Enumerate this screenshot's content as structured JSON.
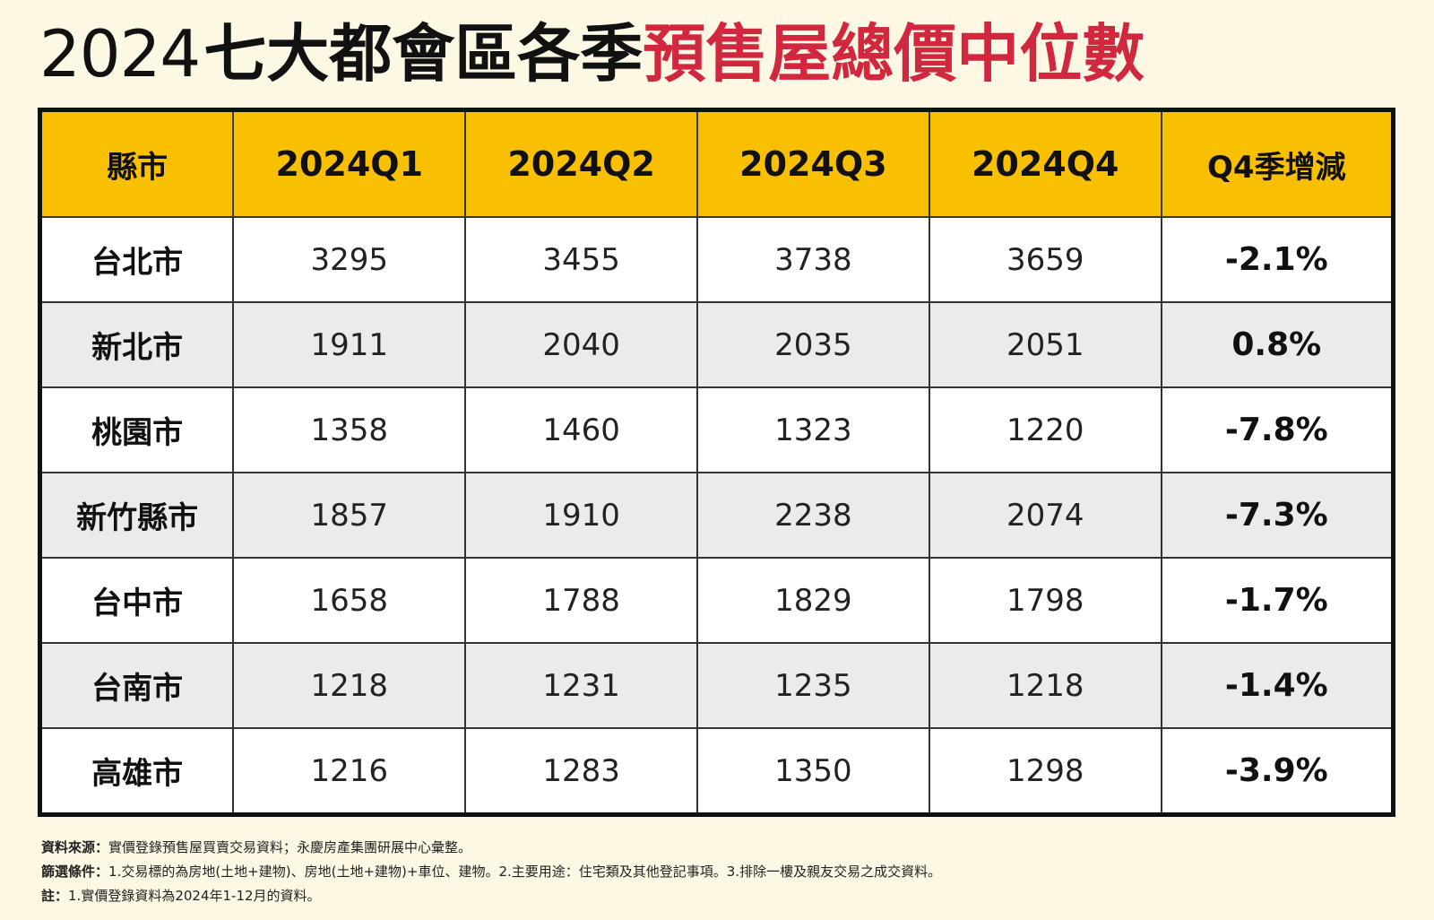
{
  "title": {
    "year": "2024",
    "black_part": "七大都會區各季",
    "red_part": "預售屋總價中位數"
  },
  "colors": {
    "header_bg": "#f8c000",
    "title_red": "#d1283f",
    "page_bg": "#fdf8e4",
    "row_alt_bg": "#ebebeb"
  },
  "table": {
    "headers": [
      "縣市",
      "2024Q1",
      "2024Q2",
      "2024Q3",
      "2024Q4",
      "Q4季增減"
    ],
    "rows": [
      {
        "city": "台北市",
        "q1": "3295",
        "q2": "3455",
        "q3": "3738",
        "q4": "3659",
        "change": "-2.1%"
      },
      {
        "city": "新北市",
        "q1": "1911",
        "q2": "2040",
        "q3": "2035",
        "q4": "2051",
        "change": "0.8%"
      },
      {
        "city": "桃園市",
        "q1": "1358",
        "q2": "1460",
        "q3": "1323",
        "q4": "1220",
        "change": "-7.8%"
      },
      {
        "city": "新竹縣市",
        "q1": "1857",
        "q2": "1910",
        "q3": "2238",
        "q4": "2074",
        "change": "-7.3%"
      },
      {
        "city": "台中市",
        "q1": "1658",
        "q2": "1788",
        "q3": "1829",
        "q4": "1798",
        "change": "-1.7%"
      },
      {
        "city": "台南市",
        "q1": "1218",
        "q2": "1231",
        "q3": "1235",
        "q4": "1218",
        "change": "-1.4%"
      },
      {
        "city": "高雄市",
        "q1": "1216",
        "q2": "1283",
        "q3": "1350",
        "q4": "1298",
        "change": "-3.9%"
      }
    ]
  },
  "notes": {
    "source_label": "資料來源：",
    "source_text": "實價登錄預售屋買賣交易資料；永慶房產集團研展中心彙整。",
    "filter_label": "篩選條件：",
    "filter_text": "1.交易標的為房地(土地+建物)、房地(土地+建物)+車位、建物。2.主要用途：住宅類及其他登記事項。3.排除一樓及親友交易之成交資料。",
    "note_label": "註：",
    "note_text": "1.實價登錄資料為2024年1-12月的資料。"
  }
}
